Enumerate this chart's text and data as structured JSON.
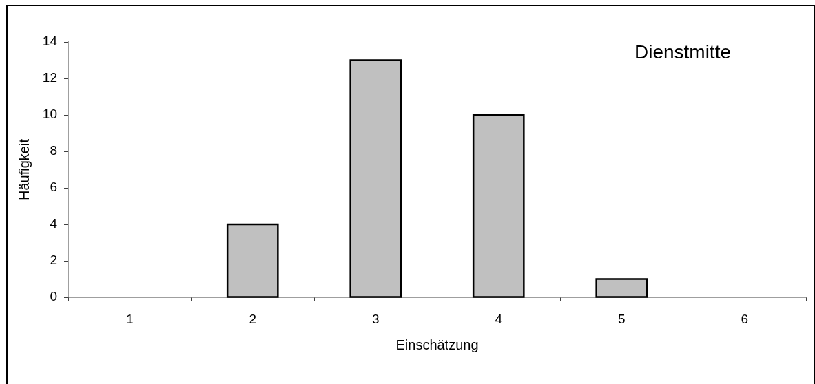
{
  "chart_data": {
    "type": "bar",
    "title": "Dienstmitte",
    "xlabel": "Einschätzung",
    "ylabel": "Häufigkeit",
    "categories": [
      "1",
      "2",
      "3",
      "4",
      "5",
      "6"
    ],
    "values": [
      0,
      4,
      13,
      10,
      1,
      0
    ],
    "color": "#c0c0c0",
    "ylim": [
      0,
      14
    ],
    "yticks": [
      0,
      2,
      4,
      6,
      8,
      10,
      12,
      14
    ]
  }
}
